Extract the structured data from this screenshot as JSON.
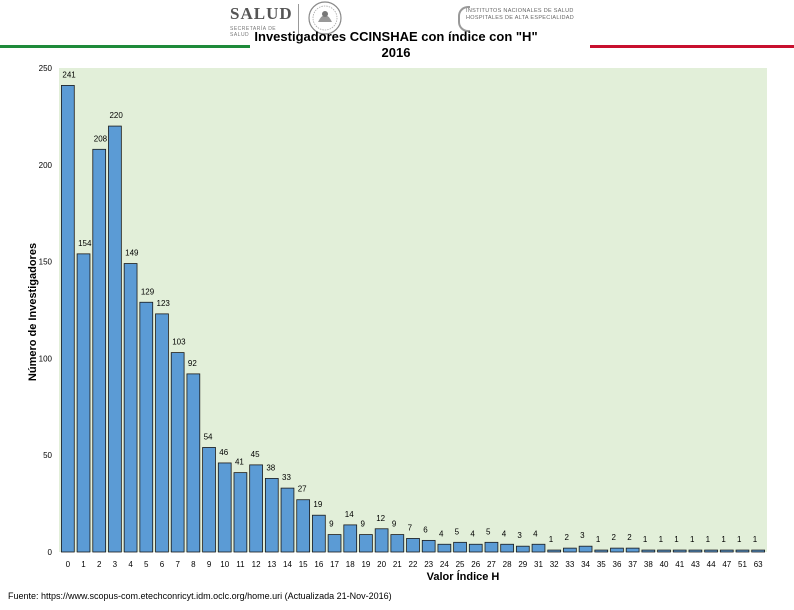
{
  "header": {
    "logo_left_text": "SALUD",
    "logo_left_subtext": "SECRETARÍA DE SALUD",
    "logo_right_text": "INSTITUTOS NACIONALES DE SALUD HOSPITALES DE ALTA ESPECIALIDAD",
    "stripe_colors": [
      "#1e8a3a",
      "#ffffff",
      "#c8102e"
    ]
  },
  "source_text": "Fuente: https://www.scopus-com.etechconricyt.idm.oclc.org/home.uri (Actualizada 21-Nov-2016)",
  "chart_data": {
    "type": "bar",
    "title": "Investigadores CCINSHAE con índice con \"H\" 2016",
    "title_line1": "Investigadores CCINSHAE con índice con \"H\"",
    "title_line2": "2016",
    "xlabel": "Valor Índice H",
    "ylabel": "Número de Investigadores",
    "ylim": [
      0,
      250
    ],
    "yticks": [
      0,
      50,
      100,
      150,
      200,
      250
    ],
    "grid": false,
    "bar_color": "#5b9bd5",
    "plot_bg": "#e2efd9",
    "categories": [
      "0",
      "1",
      "2",
      "3",
      "4",
      "5",
      "6",
      "7",
      "8",
      "9",
      "10",
      "11",
      "12",
      "13",
      "14",
      "15",
      "16",
      "17",
      "18",
      "19",
      "20",
      "21",
      "22",
      "23",
      "24",
      "25",
      "26",
      "27",
      "28",
      "29",
      "31",
      "32",
      "33",
      "34",
      "35",
      "36",
      "37",
      "38",
      "40",
      "41",
      "43",
      "44",
      "47",
      "51",
      "63"
    ],
    "values": [
      241,
      154,
      208,
      220,
      149,
      129,
      123,
      103,
      92,
      54,
      46,
      41,
      45,
      38,
      33,
      27,
      19,
      9,
      14,
      9,
      12,
      9,
      7,
      6,
      4,
      5,
      4,
      5,
      4,
      3,
      4,
      1,
      2,
      3,
      1,
      2,
      2,
      1,
      1,
      1,
      1,
      1,
      1,
      1,
      1
    ]
  }
}
